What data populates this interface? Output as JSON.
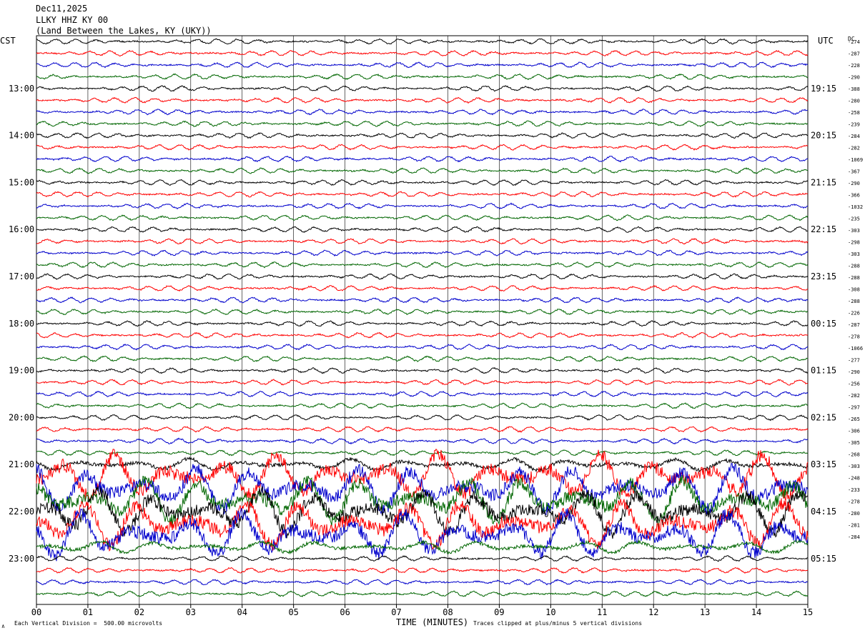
{
  "header": {
    "date": "Dec11,2025",
    "station": "LLKY HHZ KY 00",
    "location": "(Land Between the Lakes, KY (UKY))"
  },
  "axes": {
    "left_tz": "CST",
    "right_tz": "UTC",
    "dc_label": "DC",
    "xlabel": "TIME (MINUTES)",
    "footer_left": "Each Vertical Division =  500.00 microvolts",
    "footer_right": "Traces clipped at plus/minus 5 vertical divisions",
    "corner_mark": "∧"
  },
  "chart_data": {
    "type": "line",
    "title": "",
    "xlabel": "TIME (MINUTES)",
    "ylabel": "",
    "xlim": [
      0,
      15
    ],
    "x_ticks": [
      "00",
      "01",
      "02",
      "03",
      "04",
      "05",
      "06",
      "07",
      "08",
      "09",
      "10",
      "11",
      "12",
      "13",
      "14",
      "15"
    ],
    "trace_colors": [
      "#000000",
      "#ff0000",
      "#0000cc",
      "#006600"
    ],
    "left_time_labels": [
      "13:00",
      "14:00",
      "15:00",
      "16:00",
      "17:00",
      "18:00",
      "19:00",
      "20:00",
      "21:00",
      "22:00",
      "23:00"
    ],
    "right_time_labels": [
      "19:15",
      "20:15",
      "21:15",
      "22:15",
      "23:15",
      "00:15",
      "01:15",
      "02:15",
      "03:15",
      "04:15",
      "05:15"
    ],
    "dc_offsets": [
      "-274",
      "-287",
      "-228",
      "-290",
      "-388",
      "-280",
      "-258",
      "-239",
      "-284",
      "-282",
      "-1069",
      "-367",
      "-290",
      "-366",
      "-1032",
      "-235",
      "-303",
      "-298",
      "-303",
      "-288",
      "-288",
      "-308",
      "-288",
      "-226",
      "-287",
      "-278",
      "-1066",
      "-277",
      "-290",
      "-256",
      "-282",
      "-297",
      "-265",
      "-306",
      "-305",
      "-268",
      "-303",
      "-248",
      "-233",
      "-278",
      "-280",
      "-281",
      "-284"
    ],
    "num_traces": 48,
    "event_window_traces": [
      36,
      43
    ],
    "clip_divisions": 5,
    "units_per_division": "500.00 microvolts"
  }
}
